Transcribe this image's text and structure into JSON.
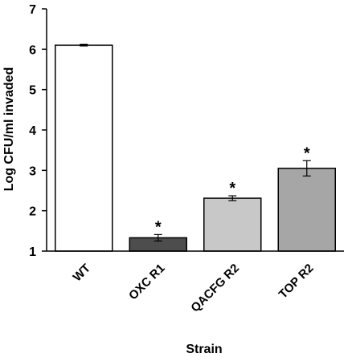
{
  "chart_data": {
    "type": "bar",
    "title": "",
    "xlabel": "Strain",
    "ylabel": "Log CFU/ml invaded",
    "ylim": [
      1,
      7
    ],
    "yticks": [
      1,
      2,
      3,
      4,
      5,
      6,
      7
    ],
    "grid": false,
    "legend": "none",
    "categories": [
      "WT",
      "OXC R1",
      "QACFG R2",
      "TOP R2"
    ],
    "values": [
      6.1,
      1.33,
      2.31,
      3.05
    ],
    "errors": [
      0.02,
      0.08,
      0.06,
      0.19
    ],
    "significance": [
      "",
      "*",
      "*",
      "*"
    ],
    "bar_fills": [
      "#ffffff",
      "#4d4d4d",
      "#c8c8c8",
      "#a6a6a6"
    ]
  }
}
